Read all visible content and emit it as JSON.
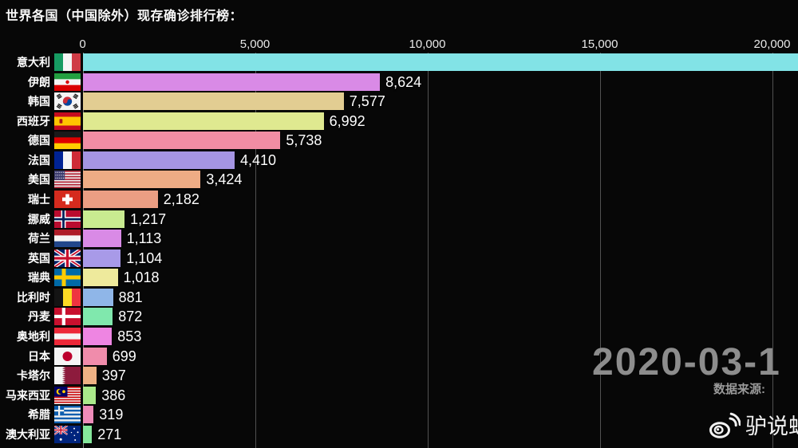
{
  "title": "世界各国（中国除外）现存确诊排行榜：",
  "overlay": {
    "date": "2020-03-1",
    "source_label": "数据来源:",
    "watermark_name": "驴说蛙"
  },
  "colors": {
    "background": "#070707",
    "text": "#ffffff",
    "muted_text": "#8d8d8d",
    "gridline": "rgba(255,255,255,0.3)"
  },
  "chart_data": {
    "type": "bar",
    "orientation": "horizontal",
    "title": "世界各国（中国除外）现存确诊排行榜：",
    "date_label": "2020-03-1",
    "grid": true,
    "x_axis": {
      "tick_labels": [
        "0",
        "5,000",
        "10,000",
        "15,000",
        "20,000"
      ],
      "tick_values": [
        0,
        5000,
        10000,
        15000,
        20000
      ],
      "axis_position": "top"
    },
    "countries": [
      {
        "rank": 1,
        "name": "意大利",
        "flag": "italy",
        "value": null,
        "value_label": "",
        "bar_extends_past_right_edge": true,
        "bar_value_estimate": 21500,
        "color": "#82e3e6"
      },
      {
        "rank": 2,
        "name": "伊朗",
        "flag": "iran",
        "value": 8624,
        "value_label": "8,624",
        "color": "#d98ae6"
      },
      {
        "rank": 3,
        "name": "韩国",
        "flag": "south-korea",
        "value": 7577,
        "value_label": "7,577",
        "color": "#e2cd92"
      },
      {
        "rank": 4,
        "name": "西班牙",
        "flag": "spain",
        "value": 6992,
        "value_label": "6,992",
        "color": "#dfe990"
      },
      {
        "rank": 5,
        "name": "德国",
        "flag": "germany",
        "value": 5738,
        "value_label": "5,738",
        "color": "#f18da4"
      },
      {
        "rank": 6,
        "name": "法国",
        "flag": "france",
        "value": 4410,
        "value_label": "4,410",
        "color": "#a595e3"
      },
      {
        "rank": 7,
        "name": "美国",
        "flag": "usa",
        "value": 3424,
        "value_label": "3,424",
        "color": "#eeac85"
      },
      {
        "rank": 8,
        "name": "瑞士",
        "flag": "switzerland",
        "value": 2182,
        "value_label": "2,182",
        "color": "#eb9e83"
      },
      {
        "rank": 9,
        "name": "挪威",
        "flag": "norway",
        "value": 1217,
        "value_label": "1,217",
        "color": "#c8eb90"
      },
      {
        "rank": 10,
        "name": "荷兰",
        "flag": "netherlands",
        "value": 1113,
        "value_label": "1,113",
        "color": "#d98ae6"
      },
      {
        "rank": 11,
        "name": "英国",
        "flag": "uk",
        "value": 1104,
        "value_label": "1,104",
        "color": "#a89ae8"
      },
      {
        "rank": 12,
        "name": "瑞典",
        "flag": "sweden",
        "value": 1018,
        "value_label": "1,018",
        "color": "#eeea9c"
      },
      {
        "rank": 13,
        "name": "比利时",
        "flag": "belgium",
        "value": 881,
        "value_label": "881",
        "color": "#8fb6e8"
      },
      {
        "rank": 14,
        "name": "丹麦",
        "flag": "denmark",
        "value": 872,
        "value_label": "872",
        "color": "#80e8ad"
      },
      {
        "rank": 15,
        "name": "奥地利",
        "flag": "austria",
        "value": 853,
        "value_label": "853",
        "color": "#ee85e2"
      },
      {
        "rank": 16,
        "name": "日本",
        "flag": "japan",
        "value": 699,
        "value_label": "699",
        "color": "#f08cab"
      },
      {
        "rank": 17,
        "name": "卡塔尔",
        "flag": "qatar",
        "value": 397,
        "value_label": "397",
        "color": "#eeb184"
      },
      {
        "rank": 18,
        "name": "马来西亚",
        "flag": "malaysia",
        "value": 386,
        "value_label": "386",
        "color": "#aae98a"
      },
      {
        "rank": 19,
        "name": "希腊",
        "flag": "greece",
        "value": 319,
        "value_label": "319",
        "color": "#ee8bb9"
      },
      {
        "rank": 20,
        "name": "澳大利亚",
        "flag": "australia",
        "value": 271,
        "value_label": "271",
        "color": "#85e79b"
      }
    ]
  }
}
